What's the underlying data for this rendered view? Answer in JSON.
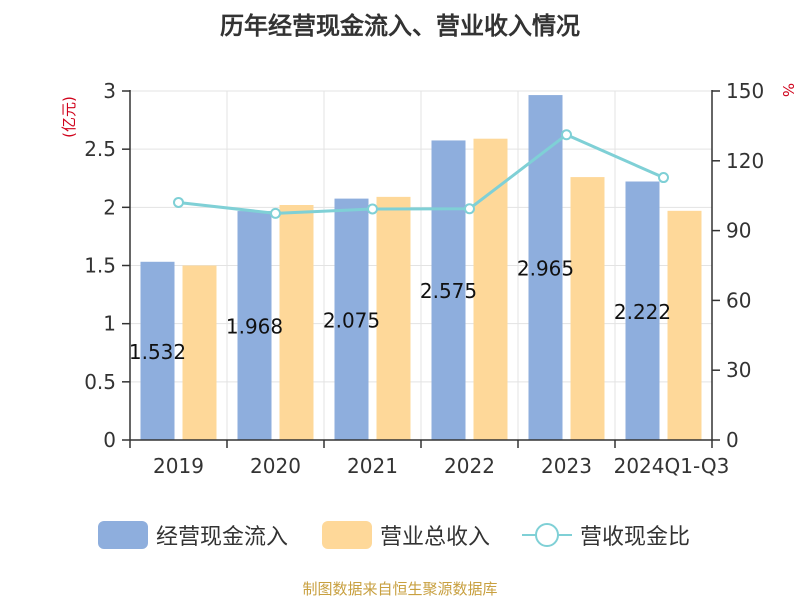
{
  "chart_data": {
    "type": "bar",
    "title": "历年经营现金流入、营业收入情况",
    "left_unit": "(亿元)",
    "right_unit": "%",
    "categories": [
      "2019",
      "2020",
      "2021",
      "2022",
      "2023",
      "2024Q1-Q3"
    ],
    "series": [
      {
        "name": "经营现金流入",
        "type": "bar",
        "axis": "left",
        "color": "#8eaedd",
        "values": [
          1.532,
          1.968,
          2.075,
          2.575,
          2.965,
          2.222
        ],
        "labels": [
          "1.532",
          "1.968",
          "2.075",
          "2.575",
          "2.965",
          "2.222"
        ]
      },
      {
        "name": "营业总收入",
        "type": "bar",
        "axis": "left",
        "color": "#fed899",
        "values": [
          1.5,
          2.02,
          2.09,
          2.59,
          2.26,
          1.97
        ]
      },
      {
        "name": "营收现金比",
        "type": "line",
        "axis": "right",
        "color": "#7fd0d6",
        "values": [
          102.1,
          97.4,
          99.3,
          99.4,
          131.2,
          112.8
        ]
      }
    ],
    "y_left": {
      "min": 0,
      "max": 3,
      "ticks": [
        "0",
        "0.5",
        "1",
        "1.5",
        "2",
        "2.5",
        "3"
      ]
    },
    "y_right": {
      "min": 0,
      "max": 150,
      "ticks": [
        "0",
        "30",
        "60",
        "90",
        "120",
        "150"
      ]
    },
    "grid": true,
    "legend_position": "bottom"
  },
  "source": "制图数据来自恒生聚源数据库"
}
